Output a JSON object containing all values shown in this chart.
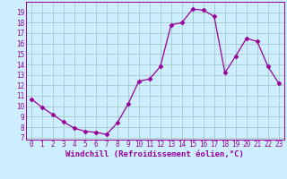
{
  "x": [
    0,
    1,
    2,
    3,
    4,
    5,
    6,
    7,
    8,
    9,
    10,
    11,
    12,
    13,
    14,
    15,
    16,
    17,
    18,
    19,
    20,
    21,
    22,
    23
  ],
  "y": [
    10.7,
    9.9,
    9.2,
    8.5,
    7.9,
    7.6,
    7.5,
    7.3,
    8.4,
    10.2,
    12.4,
    12.6,
    13.8,
    17.8,
    18.0,
    19.3,
    19.2,
    18.6,
    13.2,
    14.8,
    16.5,
    16.2,
    13.8,
    12.2
  ],
  "line_color": "#990099",
  "marker": "D",
  "marker_size": 2.5,
  "bg_color": "#cceeff",
  "grid_color": "#aacccc",
  "xlabel": "Windchill (Refroidissement éolien,°C)",
  "yticks": [
    7,
    8,
    9,
    10,
    11,
    12,
    13,
    14,
    15,
    16,
    17,
    18,
    19
  ],
  "xticks": [
    0,
    1,
    2,
    3,
    4,
    5,
    6,
    7,
    8,
    9,
    10,
    11,
    12,
    13,
    14,
    15,
    16,
    17,
    18,
    19,
    20,
    21,
    22,
    23
  ],
  "ylim": [
    6.8,
    20.0
  ],
  "xlim": [
    -0.5,
    23.5
  ],
  "tick_fontsize": 5.5,
  "xlabel_fontsize": 6.5
}
